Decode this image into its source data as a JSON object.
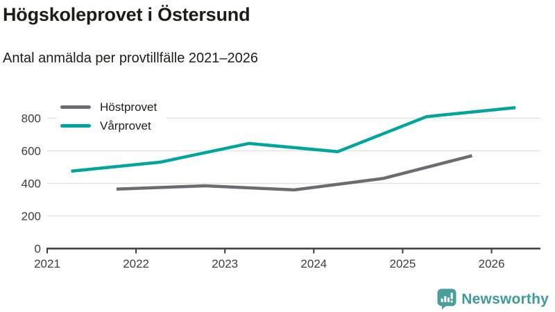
{
  "chart_data": {
    "type": "line",
    "title": "Högskoleprovet i Östersund",
    "subtitle": "Antal anmälda per provtillfälle 2021–2026",
    "x_axis": {
      "ticks": [
        2021,
        2022,
        2023,
        2024,
        2025,
        2026
      ],
      "range": [
        2021,
        2026.55
      ]
    },
    "y_axis": {
      "ticks": [
        0,
        200,
        400,
        600,
        800
      ],
      "range": [
        0,
        900
      ]
    },
    "grid": "horizontal-only",
    "legend_position": "top-left",
    "series": [
      {
        "name": "Höstprovet",
        "color": "#6b6b71",
        "x": [
          2021.78,
          2022.78,
          2023.78,
          2024.78,
          2025.78
        ],
        "values": [
          365,
          385,
          360,
          430,
          570
        ]
      },
      {
        "name": "Vårprovet",
        "color": "#00a69b",
        "x": [
          2021.27,
          2022.27,
          2023.27,
          2024.27,
          2025.27,
          2026.27
        ],
        "values": [
          475,
          530,
          645,
          595,
          810,
          865
        ]
      }
    ],
    "colors": {
      "axis_line": "#3c3c3c",
      "gridline": "#e2e2e2",
      "tick_label": "#3d3d3d"
    }
  },
  "footer": {
    "brand": "Newsworthy",
    "brand_color": "#3f9b97",
    "logo_icon": "bar-chart-speech-bubble"
  }
}
